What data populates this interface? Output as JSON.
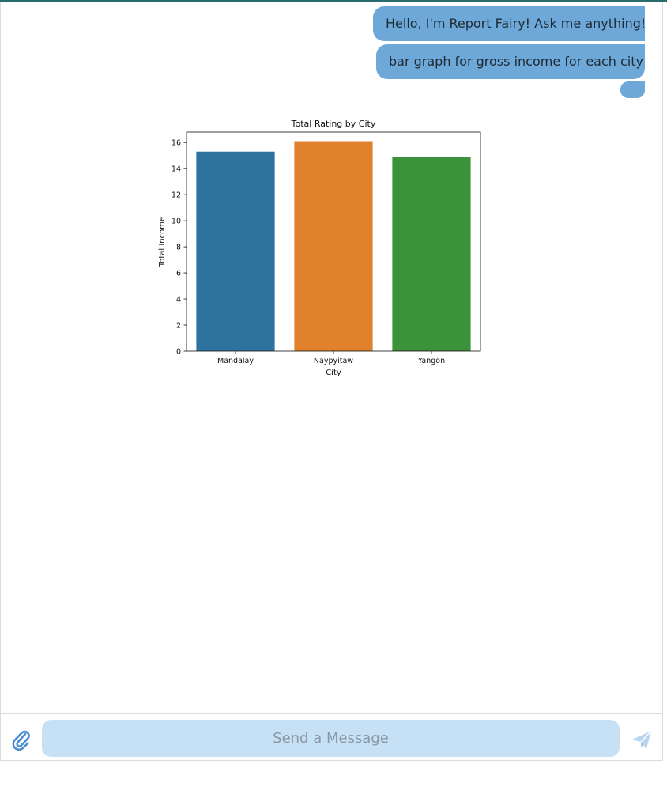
{
  "messages": [
    {
      "text": "Hello, I'm Report Fairy! Ask me anything!"
    },
    {
      "text": "bar graph for gross income for each city"
    },
    {
      "text": ""
    }
  ],
  "composer": {
    "placeholder": "Send a Message",
    "attach_icon": "paperclip-icon",
    "send_icon": "send-icon"
  },
  "colors": {
    "bubble": "#6ea8d9",
    "input_bg": "#c6e1f6",
    "top_bar": "#2a6b6e"
  },
  "chart_data": {
    "type": "bar",
    "title": "Total Rating by City",
    "xlabel": "City",
    "ylabel": "Total Income",
    "categories": [
      "Mandalay",
      "Naypyitaw",
      "Yangon"
    ],
    "values": [
      15.3,
      16.1,
      14.9
    ],
    "colors": [
      "#2e72a0",
      "#e1812c",
      "#3a923a"
    ],
    "ylim": [
      0,
      16.8
    ],
    "yticks": [
      0,
      2,
      4,
      6,
      8,
      10,
      12,
      14,
      16
    ],
    "grid": false
  }
}
